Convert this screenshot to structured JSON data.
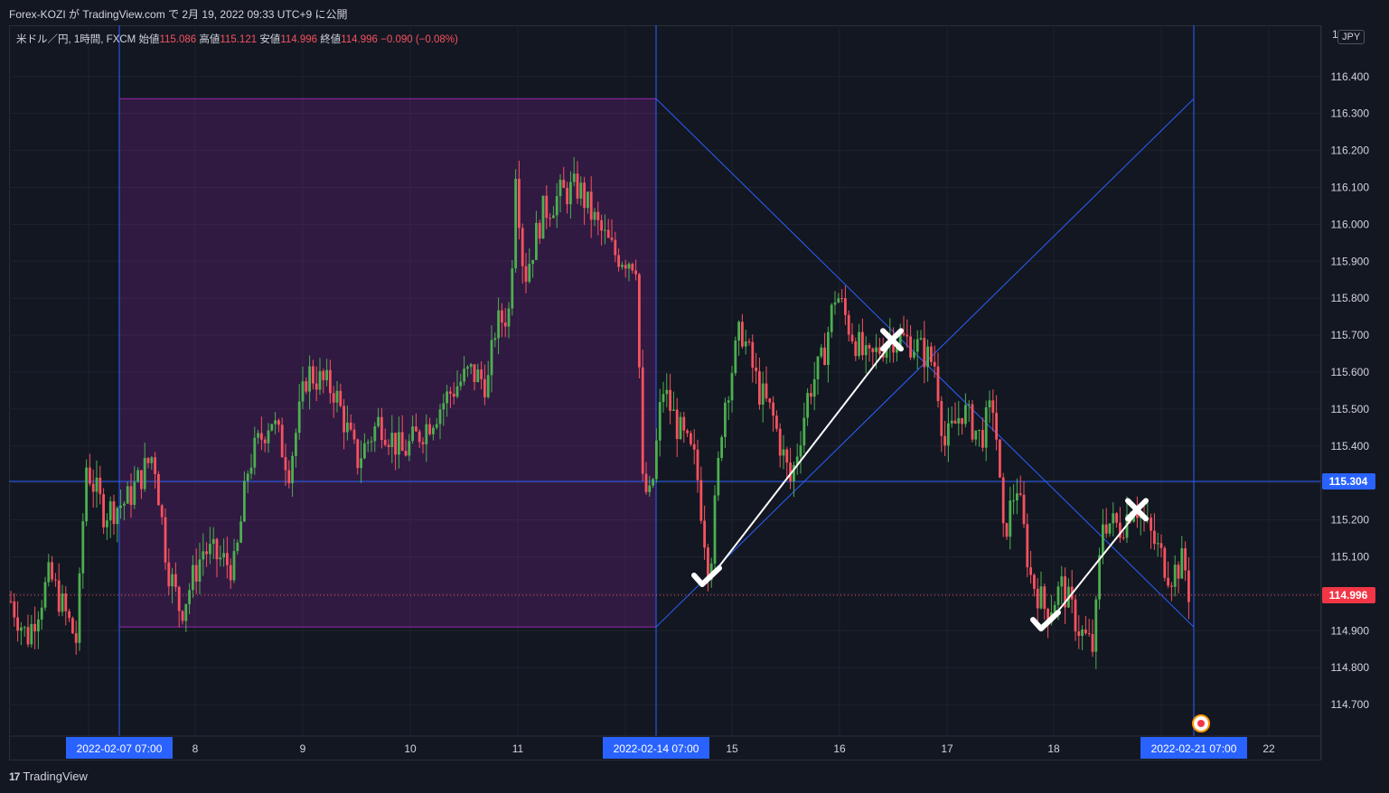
{
  "header": {
    "published": "Forex-KOZI が TradingView.com で 2月 19, 2022 09:33 UTC+9 に公開"
  },
  "legend": {
    "symbol": "米ドル／円, 1時間, FXCM",
    "open_label": "始値",
    "open": "115.086",
    "high_label": "高値",
    "high": "115.121",
    "low_label": "安値",
    "low": "114.996",
    "close_label": "終値",
    "close": "114.996",
    "change": "−0.090 (−0.08%)"
  },
  "currency_button": "JPY",
  "footer": {
    "logo": "17",
    "brand": "TradingView"
  },
  "chart_data": {
    "type": "candlestick",
    "y_ticks": [
      "114.700",
      "114.800",
      "114.900",
      "115.000",
      "115.100",
      "115.200",
      "115.300",
      "115.400",
      "115.500",
      "115.600",
      "115.700",
      "115.800",
      "115.900",
      "116.000",
      "116.100",
      "116.200",
      "116.300",
      "116.400"
    ],
    "y_top_partial": "1",
    "ylim": [
      114.64,
      116.52
    ],
    "x_ticks": [
      "8",
      "9",
      "10",
      "11",
      "15",
      "16",
      "17",
      "18",
      "22"
    ],
    "x_highlight_labels": [
      "2022-02-07   07:00",
      "2022-02-14   07:00",
      "2022-02-21   07:00"
    ],
    "price_labels": {
      "crosshair": "115.304",
      "last": "114.996"
    },
    "colors": {
      "up": "#4caf50",
      "down": "#f7525f",
      "range_box": "#9c27b0",
      "lines": "#2962ff",
      "bg": "#131722"
    },
    "range_box": {
      "start": "2022-02-07 07:00",
      "end": "2022-02-14 07:00",
      "high": 116.34,
      "low": 114.91
    },
    "projection": {
      "start": "2022-02-14 07:00",
      "end": "2022-02-21 07:00",
      "high": 116.34,
      "low": 114.91
    },
    "marker_lines": [
      {
        "from": [
          115.04,
          "down"
        ],
        "to": [
          115.68,
          "up"
        ],
        "start_mark": "check",
        "end_mark": "cross"
      },
      {
        "from": [
          114.92,
          "down"
        ],
        "to": [
          115.22,
          "up"
        ],
        "start_mark": "check",
        "end_mark": "cross"
      }
    ],
    "grid": true
  }
}
